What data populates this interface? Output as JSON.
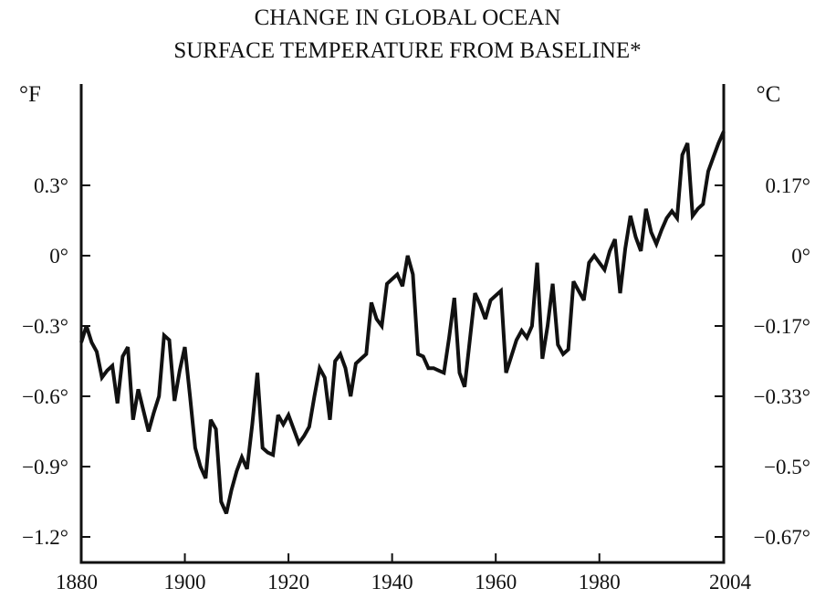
{
  "chart_data": {
    "type": "line",
    "title": "CHANGE IN GLOBAL OCEAN SURFACE TEMPERATURE FROM BASELINE*",
    "title_lines": [
      "CHANGE IN GLOBAL OCEAN",
      "SURFACE TEMPERATURE FROM BASELINE*"
    ],
    "y_left_unit": "°F",
    "y_right_unit": "°C",
    "xlim": [
      1880,
      2004
    ],
    "ylim": [
      -1.32,
      0.55
    ],
    "x_ticks": [
      1880,
      1900,
      1920,
      1940,
      1960,
      1980,
      2004
    ],
    "x_tick_labels": [
      "1880",
      "1900",
      "1920",
      "1940",
      "1960",
      "1980",
      "2004"
    ],
    "y_left_ticks": [
      0.3,
      0,
      -0.3,
      -0.6,
      -0.9,
      -1.2
    ],
    "y_left_tick_labels": [
      "0.3°",
      "0°",
      "−0.3°",
      "−0.6°",
      "−0.9°",
      "−1.2°"
    ],
    "y_right_ticks": [
      0.3,
      0,
      -0.3,
      -0.6,
      -0.9,
      -1.2
    ],
    "y_right_tick_labels": [
      "0.17°",
      "0°",
      "−0.17°",
      "−0.33°",
      "−0.5°",
      "−0.67°"
    ],
    "grid": false,
    "line_color": "#111111",
    "series": [
      {
        "x": [
          1880,
          1881,
          1882,
          1883,
          1884,
          1885,
          1886,
          1887,
          1888,
          1889,
          1890,
          1891,
          1892,
          1893,
          1894,
          1895,
          1896,
          1897,
          1898,
          1899,
          1900,
          1901,
          1902,
          1903,
          1904,
          1905,
          1906,
          1907,
          1908,
          1909,
          1910,
          1911,
          1912,
          1913,
          1914,
          1915,
          1916,
          1917,
          1918,
          1919,
          1920,
          1921,
          1922,
          1923,
          1924,
          1925,
          1926,
          1927,
          1928,
          1929,
          1930,
          1931,
          1932,
          1933,
          1934,
          1935,
          1936,
          1937,
          1938,
          1939,
          1940,
          1941,
          1942,
          1943,
          1944,
          1945,
          1946,
          1947,
          1948,
          1949,
          1950,
          1951,
          1952,
          1953,
          1954,
          1955,
          1956,
          1957,
          1958,
          1959,
          1960,
          1961,
          1962,
          1963,
          1964,
          1965,
          1966,
          1967,
          1968,
          1969,
          1970,
          1971,
          1972,
          1973,
          1974,
          1975,
          1976,
          1977,
          1978,
          1979,
          1980,
          1981,
          1982,
          1983,
          1984,
          1985,
          1986,
          1987,
          1988,
          1989,
          1990,
          1991,
          1992,
          1993,
          1994,
          1995,
          1996,
          1997,
          1998,
          1999,
          2000,
          2001,
          2002,
          2003,
          2004
        ],
        "y": [
          -0.37,
          -0.3,
          -0.37,
          -0.41,
          -0.52,
          -0.49,
          -0.47,
          -0.63,
          -0.43,
          -0.39,
          -0.7,
          -0.57,
          -0.66,
          -0.75,
          -0.67,
          -0.6,
          -0.34,
          -0.36,
          -0.62,
          -0.49,
          -0.39,
          -0.6,
          -0.82,
          -0.9,
          -0.95,
          -0.7,
          -0.74,
          -1.05,
          -1.1,
          -1.0,
          -0.92,
          -0.86,
          -0.91,
          -0.72,
          -0.5,
          -0.82,
          -0.84,
          -0.85,
          -0.68,
          -0.72,
          -0.68,
          -0.74,
          -0.8,
          -0.77,
          -0.73,
          -0.6,
          -0.48,
          -0.52,
          -0.7,
          -0.45,
          -0.42,
          -0.48,
          -0.6,
          -0.46,
          -0.44,
          -0.42,
          -0.2,
          -0.27,
          -0.3,
          -0.12,
          -0.1,
          -0.08,
          -0.13,
          0.0,
          -0.08,
          -0.42,
          -0.43,
          -0.48,
          -0.48,
          -0.49,
          -0.5,
          -0.35,
          -0.18,
          -0.5,
          -0.56,
          -0.36,
          -0.16,
          -0.21,
          -0.27,
          -0.19,
          -0.17,
          -0.15,
          -0.5,
          -0.43,
          -0.36,
          -0.32,
          -0.35,
          -0.3,
          -0.03,
          -0.44,
          -0.3,
          -0.12,
          -0.38,
          -0.42,
          -0.4,
          -0.11,
          -0.15,
          -0.19,
          -0.03,
          0.0,
          -0.03,
          -0.06,
          0.02,
          0.07,
          -0.16,
          0.03,
          0.17,
          0.08,
          0.02,
          0.2,
          0.1,
          0.05,
          0.11,
          0.16,
          0.19,
          0.16,
          0.43,
          0.48,
          0.17,
          0.2,
          0.22,
          0.36,
          0.42,
          0.48,
          0.53
        ]
      }
    ]
  }
}
